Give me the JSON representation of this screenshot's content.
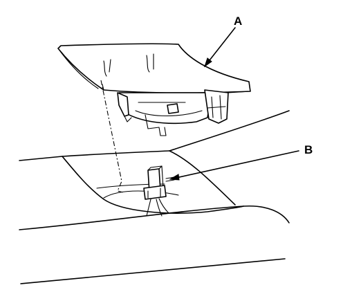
{
  "callouts": {
    "a": {
      "label": "A"
    },
    "b": {
      "label": "B"
    }
  },
  "colors": {
    "stroke": "#000000",
    "background": "#ffffff"
  }
}
